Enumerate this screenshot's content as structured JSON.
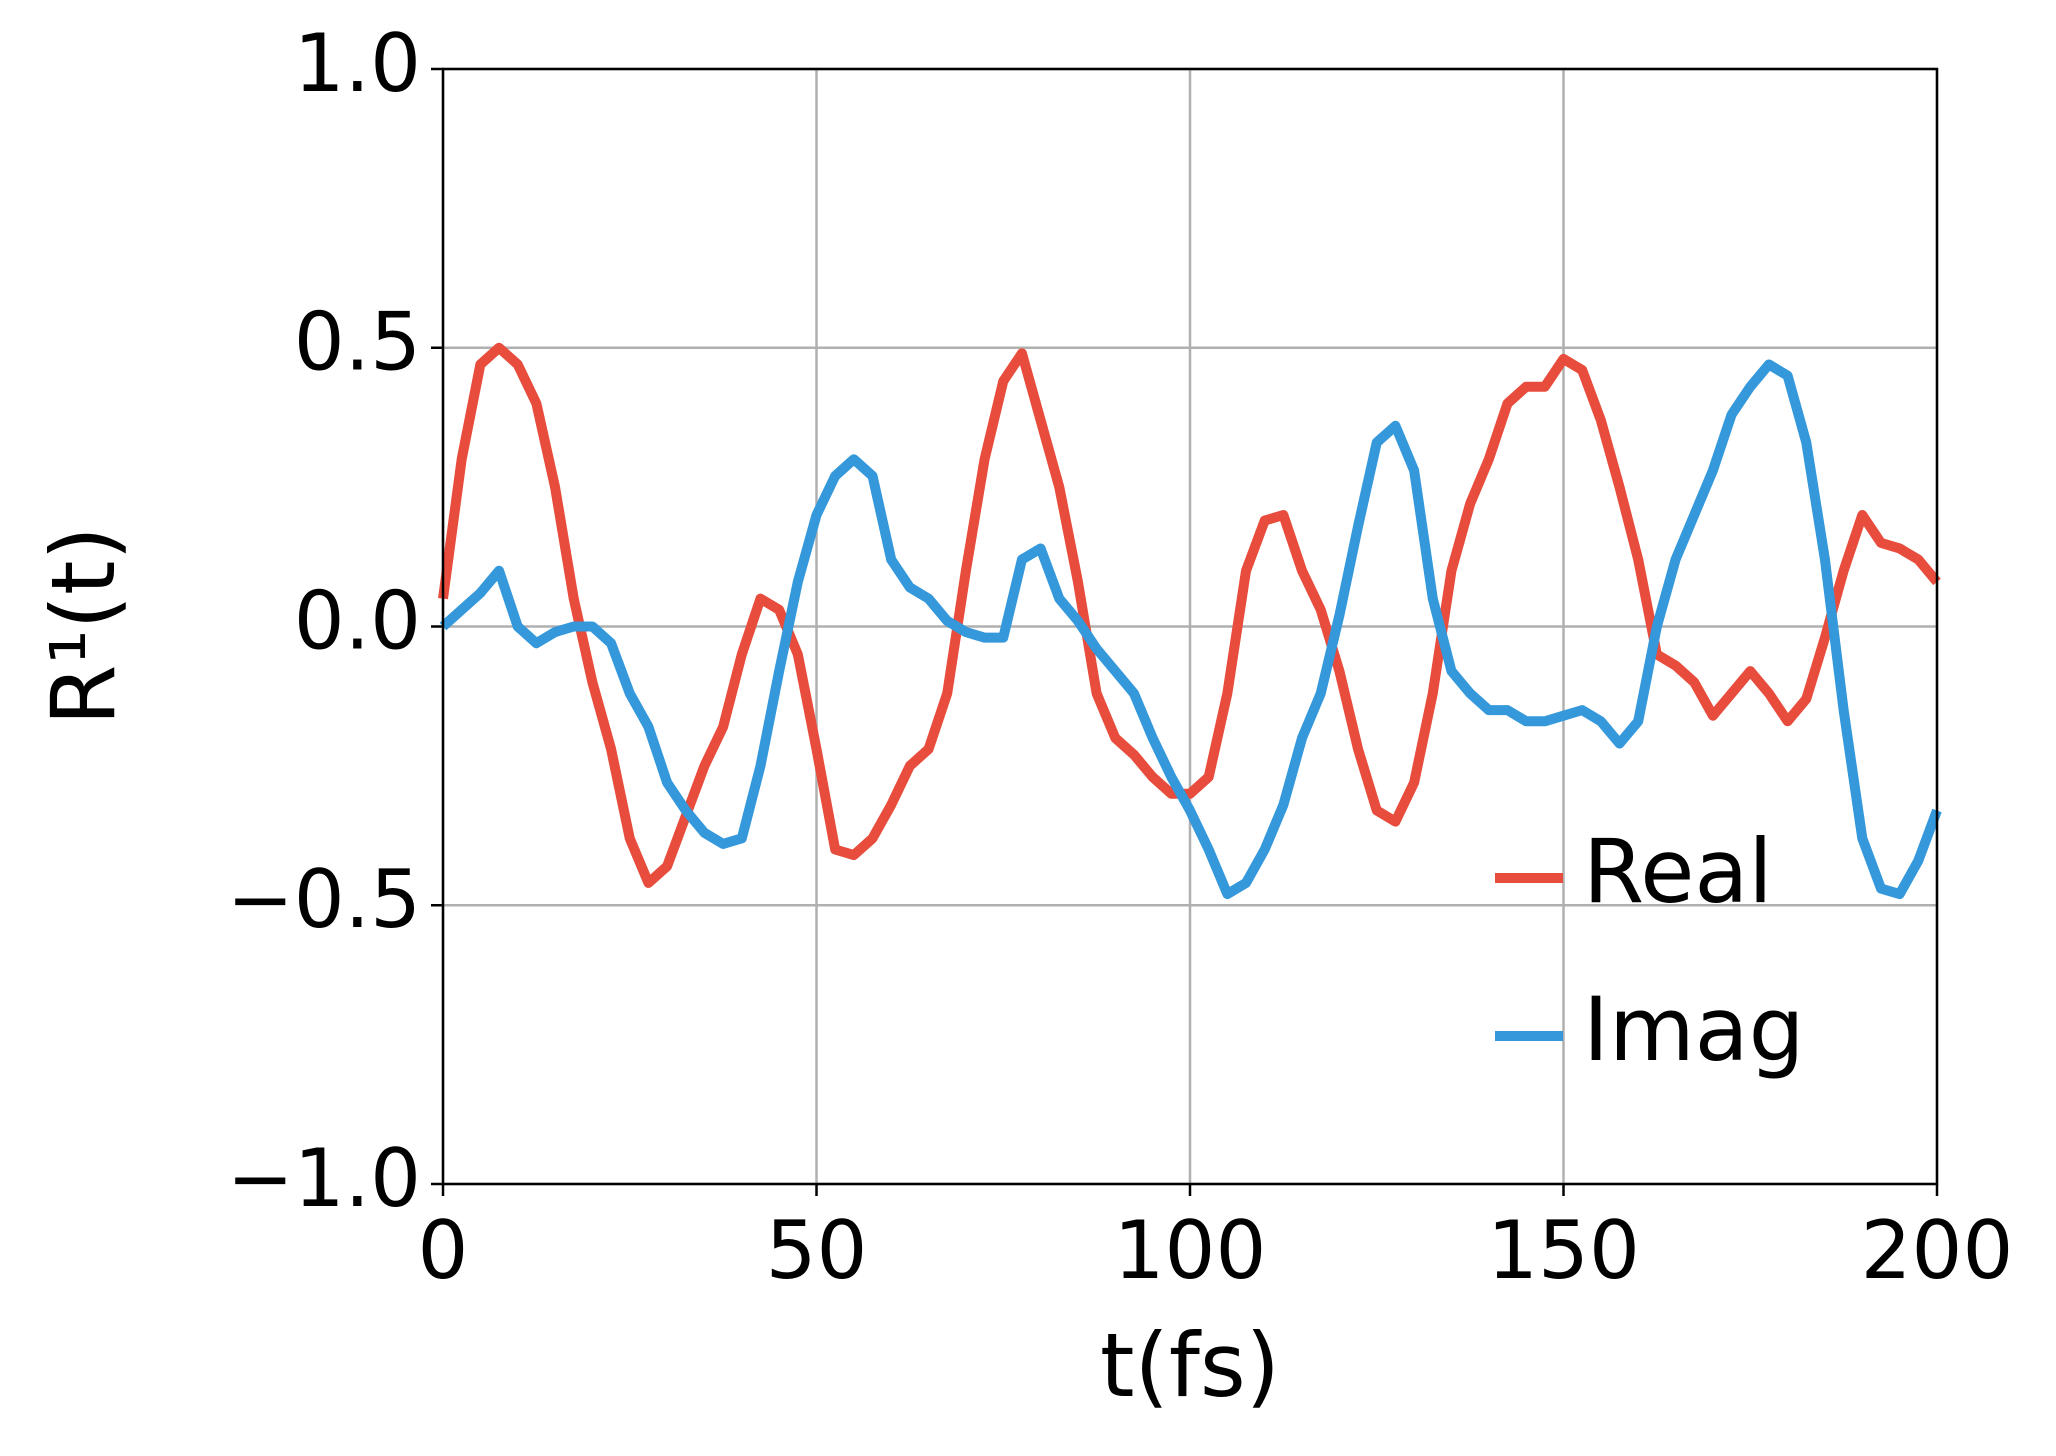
{
  "chart_data": {
    "type": "line",
    "x_label": "t(fs)",
    "y_label": "R¹(t)",
    "x": [
      0,
      2.5,
      5,
      7.5,
      10,
      12.5,
      15,
      17.5,
      20,
      22.5,
      25,
      27.5,
      30,
      32.5,
      35,
      37.5,
      40,
      42.5,
      45,
      47.5,
      50,
      52.5,
      55,
      57.5,
      60,
      62.5,
      65,
      67.5,
      70,
      72.5,
      75,
      77.5,
      80,
      82.5,
      85,
      87.5,
      90,
      92.5,
      95,
      97.5,
      100,
      102.5,
      105,
      107.5,
      110,
      112.5,
      115,
      117.5,
      120,
      122.5,
      125,
      127.5,
      130,
      132.5,
      135,
      137.5,
      140,
      142.5,
      145,
      147.5,
      150,
      152.5,
      155,
      157.5,
      160,
      162.5,
      165,
      167.5,
      170,
      172.5,
      175,
      177.5,
      180,
      182.5,
      185,
      187.5,
      190,
      192.5,
      195,
      197.5,
      200
    ],
    "series": [
      {
        "name": "Real",
        "color": "#e74c3c",
        "values": [
          0.05,
          0.3,
          0.47,
          0.5,
          0.47,
          0.4,
          0.25,
          0.05,
          -0.1,
          -0.22,
          -0.38,
          -0.46,
          -0.43,
          -0.34,
          -0.25,
          -0.18,
          -0.05,
          0.05,
          0.03,
          -0.05,
          -0.22,
          -0.4,
          -0.41,
          -0.38,
          -0.32,
          -0.25,
          -0.22,
          -0.12,
          0.1,
          0.3,
          0.44,
          0.49,
          0.37,
          0.25,
          0.08,
          -0.12,
          -0.2,
          -0.23,
          -0.27,
          -0.3,
          -0.3,
          -0.27,
          -0.12,
          0.1,
          0.19,
          0.2,
          0.1,
          0.03,
          -0.08,
          -0.22,
          -0.33,
          -0.35,
          -0.28,
          -0.12,
          0.1,
          0.22,
          0.3,
          0.4,
          0.43,
          0.43,
          0.48,
          0.46,
          0.37,
          0.25,
          0.12,
          -0.05,
          -0.07,
          -0.1,
          -0.16,
          -0.12,
          -0.08,
          -0.12,
          -0.17,
          -0.13,
          -0.02,
          0.1,
          0.2,
          0.15,
          0.14,
          0.12,
          0.08
        ]
      },
      {
        "name": "Imag",
        "color": "#3498db",
        "values": [
          0,
          0.03,
          0.06,
          0.1,
          0,
          -0.03,
          -0.01,
          0,
          0,
          -0.03,
          -0.12,
          -0.18,
          -0.28,
          -0.33,
          -0.37,
          -0.39,
          -0.38,
          -0.25,
          -0.08,
          0.08,
          0.2,
          0.27,
          0.3,
          0.27,
          0.12,
          0.07,
          0.05,
          0.01,
          -0.01,
          -0.02,
          -0.02,
          0.12,
          0.14,
          0.05,
          0.01,
          -0.04,
          -0.08,
          -0.12,
          -0.2,
          -0.27,
          -0.33,
          -0.4,
          -0.48,
          -0.46,
          -0.4,
          -0.32,
          -0.2,
          -0.12,
          0.02,
          0.18,
          0.33,
          0.36,
          0.28,
          0.05,
          -0.08,
          -0.12,
          -0.15,
          -0.15,
          -0.17,
          -0.17,
          -0.16,
          -0.15,
          -0.17,
          -0.21,
          -0.17,
          0,
          0.12,
          0.2,
          0.28,
          0.38,
          0.43,
          0.47,
          0.45,
          0.33,
          0.12,
          -0.15,
          -0.38,
          -0.47,
          -0.48,
          -0.42,
          -0.33
        ]
      }
    ],
    "xlim": [
      0,
      200
    ],
    "xticks": [
      0,
      50,
      100,
      150,
      200
    ],
    "ylim": [
      -1,
      1
    ],
    "yticks": [
      {
        "value": -1,
        "label": "−1.0"
      },
      {
        "value": -0.5,
        "label": "−0.5"
      },
      {
        "value": 0,
        "label": "0.0"
      },
      {
        "value": 0.5,
        "label": "0.5"
      },
      {
        "value": 1,
        "label": "1.0"
      }
    ],
    "grid": true,
    "legend": "lower right"
  }
}
